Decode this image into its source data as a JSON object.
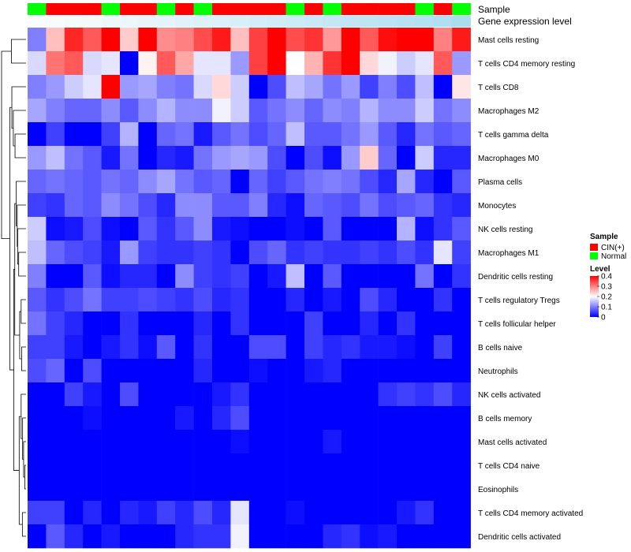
{
  "chart_data": {
    "type": "heatmap",
    "title": "",
    "annotation_tracks": [
      "Sample",
      "Gene expression level"
    ],
    "rows": [
      "Mast cells resting",
      "T cells CD4 memory resting",
      "T cells CD8",
      "Macrophages M2",
      "T cells gamma delta",
      "Macrophages M0",
      "Plasma cells",
      "Monocytes",
      "NK cells resting",
      "Macrophages M1",
      "Dendritic cells resting",
      "T cells regulatory  Tregs",
      "T cells follicular helper",
      "B cells naive",
      "Neutrophils",
      "NK cells activated",
      "B cells memory",
      "Mast cells activated",
      "T cells CD4 naive",
      "Eosinophils",
      "T cells CD4 memory activated",
      "Dendritic cells activated"
    ],
    "sample_groups": [
      "Normal",
      "CIN(+)",
      "CIN(+)",
      "CIN(+)",
      "Normal",
      "CIN(+)",
      "CIN(+)",
      "Normal",
      "CIN(+)",
      "Normal",
      "CIN(+)",
      "CIN(+)",
      "CIN(+)",
      "CIN(+)",
      "Normal",
      "CIN(+)",
      "Normal",
      "CIN(+)",
      "CIN(+)",
      "CIN(+)",
      "CIN(+)",
      "Normal",
      "CIN(+)",
      "Normal"
    ],
    "expression_level_track": [
      0.04,
      0.06,
      0.09,
      0.11,
      0.14,
      0.17,
      0.2,
      0.22,
      0.25,
      0.28,
      0.3,
      0.33,
      0.36,
      0.39,
      0.42,
      0.45,
      0.48,
      0.51,
      0.54,
      0.57,
      0.6,
      0.63,
      0.66,
      0.7
    ],
    "values": [
      [
        0.1,
        0.25,
        0.37,
        0.33,
        0.4,
        0.24,
        0.4,
        0.29,
        0.3,
        0.34,
        0.38,
        0.25,
        0.35,
        0.4,
        0.34,
        0.36,
        0.28,
        0.4,
        0.33,
        0.39,
        0.4,
        0.4,
        0.3,
        0.38
      ],
      [
        0.17,
        0.31,
        0.33,
        0.17,
        0.18,
        0.0,
        0.21,
        0.33,
        0.27,
        0.18,
        0.18,
        0.12,
        0.35,
        0.4,
        0.2,
        0.26,
        0.36,
        0.4,
        0.23,
        0.19,
        0.16,
        0.18,
        0.33,
        0.12
      ],
      [
        0.1,
        0.12,
        0.16,
        0.18,
        0.4,
        0.12,
        0.13,
        0.1,
        0.09,
        0.17,
        0.23,
        0.16,
        0.0,
        0.06,
        0.15,
        0.13,
        0.09,
        0.12,
        0.05,
        0.1,
        0.06,
        0.15,
        0.0,
        0.22
      ],
      [
        0.13,
        0.1,
        0.08,
        0.08,
        0.11,
        0.07,
        0.11,
        0.14,
        0.11,
        0.11,
        0.19,
        0.16,
        0.07,
        0.09,
        0.11,
        0.08,
        0.11,
        0.1,
        0.14,
        0.11,
        0.11,
        0.16,
        0.09,
        0.11
      ],
      [
        0.0,
        0.05,
        0.0,
        0.0,
        0.05,
        0.14,
        0.0,
        0.08,
        0.09,
        0.02,
        0.07,
        0.09,
        0.06,
        0.08,
        0.15,
        0.07,
        0.07,
        0.09,
        0.12,
        0.07,
        0.03,
        0.09,
        0.07,
        0.08
      ],
      [
        0.12,
        0.15,
        0.09,
        0.07,
        0.02,
        0.09,
        0.0,
        0.03,
        0.02,
        0.09,
        0.12,
        0.13,
        0.12,
        0.06,
        0.0,
        0.06,
        0.01,
        0.12,
        0.24,
        0.08,
        0.0,
        0.16,
        0.03,
        0.03
      ],
      [
        0.08,
        0.09,
        0.08,
        0.07,
        0.09,
        0.08,
        0.11,
        0.13,
        0.09,
        0.07,
        0.08,
        0.0,
        0.08,
        0.05,
        0.07,
        0.09,
        0.1,
        0.09,
        0.06,
        0.03,
        0.13,
        0.03,
        0.0,
        0.07
      ],
      [
        0.05,
        0.04,
        0.08,
        0.07,
        0.11,
        0.09,
        0.06,
        0.03,
        0.11,
        0.11,
        0.07,
        0.07,
        0.1,
        0.03,
        0.01,
        0.08,
        0.07,
        0.06,
        0.09,
        0.06,
        0.07,
        0.08,
        0.04,
        0.03
      ],
      [
        0.16,
        0.01,
        0.02,
        0.06,
        0.01,
        0.0,
        0.07,
        0.04,
        0.07,
        0.11,
        0.02,
        0.01,
        0.0,
        0.0,
        0.01,
        0.0,
        0.07,
        0.0,
        0.0,
        0.0,
        0.14,
        0.01,
        0.04,
        0.07
      ],
      [
        0.15,
        0.08,
        0.06,
        0.05,
        0.02,
        0.12,
        0.05,
        0.04,
        0.04,
        0.05,
        0.04,
        0.0,
        0.06,
        0.08,
        0.04,
        0.05,
        0.04,
        0.04,
        0.05,
        0.04,
        0.06,
        0.04,
        0.18,
        0.05
      ],
      [
        0.1,
        0.0,
        0.0,
        0.07,
        0.01,
        0.03,
        0.03,
        0.0,
        0.11,
        0.05,
        0.04,
        0.05,
        0.0,
        0.02,
        0.15,
        0.0,
        0.07,
        0.0,
        0.0,
        0.0,
        0.0,
        0.09,
        0.0,
        0.04
      ],
      [
        0.07,
        0.04,
        0.06,
        0.09,
        0.05,
        0.05,
        0.06,
        0.05,
        0.04,
        0.06,
        0.03,
        0.04,
        0.0,
        0.0,
        0.03,
        0.0,
        0.02,
        0.0,
        0.06,
        0.03,
        0.0,
        0.0,
        0.04,
        0.0
      ],
      [
        0.09,
        0.05,
        0.03,
        0.0,
        0.0,
        0.04,
        0.0,
        0.0,
        0.0,
        0.03,
        0.0,
        0.04,
        0.0,
        0.0,
        0.0,
        0.05,
        0.0,
        0.0,
        0.03,
        0.0,
        0.04,
        0.0,
        0.0,
        0.0
      ],
      [
        0.05,
        0.05,
        0.02,
        0.0,
        0.02,
        0.04,
        0.01,
        0.07,
        0.0,
        0.04,
        0.0,
        0.0,
        0.06,
        0.06,
        0.0,
        0.05,
        0.03,
        0.04,
        0.02,
        0.02,
        0.01,
        0.0,
        0.05,
        0.0
      ],
      [
        0.06,
        0.08,
        0.0,
        0.06,
        0.0,
        0.0,
        0.0,
        0.0,
        0.0,
        0.03,
        0.0,
        0.0,
        0.01,
        0.0,
        0.0,
        0.02,
        0.03,
        0.0,
        0.0,
        0.0,
        0.0,
        0.0,
        0.0,
        0.0
      ],
      [
        0.0,
        0.0,
        0.05,
        0.02,
        0.0,
        0.06,
        0.0,
        0.0,
        0.0,
        0.0,
        0.02,
        0.04,
        0.0,
        0.0,
        0.0,
        0.0,
        0.0,
        0.0,
        0.0,
        0.04,
        0.05,
        0.04,
        0.06,
        0.03
      ],
      [
        0.0,
        0.0,
        0.0,
        0.01,
        0.0,
        0.0,
        0.0,
        0.0,
        0.02,
        0.0,
        0.03,
        0.06,
        0.0,
        0.0,
        0.0,
        0.0,
        0.0,
        0.0,
        0.0,
        0.0,
        0.0,
        0.0,
        0.0,
        0.0
      ],
      [
        0.0,
        0.0,
        0.0,
        0.0,
        0.0,
        0.0,
        0.0,
        0.0,
        0.0,
        0.0,
        0.0,
        0.01,
        0.0,
        0.0,
        0.0,
        0.0,
        0.02,
        0.0,
        0.0,
        0.0,
        0.0,
        0.0,
        0.0,
        0.0
      ],
      [
        0.0,
        0.0,
        0.0,
        0.0,
        0.0,
        0.0,
        0.0,
        0.0,
        0.0,
        0.0,
        0.0,
        0.0,
        0.0,
        0.0,
        0.0,
        0.0,
        0.0,
        0.0,
        0.0,
        0.0,
        0.0,
        0.0,
        0.0,
        0.0
      ],
      [
        0.0,
        0.0,
        0.0,
        0.0,
        0.0,
        0.0,
        0.0,
        0.0,
        0.0,
        0.0,
        0.0,
        0.0,
        0.0,
        0.0,
        0.0,
        0.0,
        0.0,
        0.0,
        0.0,
        0.0,
        0.0,
        0.0,
        0.0,
        0.0
      ],
      [
        0.05,
        0.05,
        0.0,
        0.03,
        0.0,
        0.03,
        0.02,
        0.05,
        0.03,
        0.06,
        0.03,
        0.18,
        0.0,
        0.0,
        0.01,
        0.0,
        0.0,
        0.0,
        0.0,
        0.0,
        0.02,
        0.04,
        0.0,
        0.0
      ],
      [
        0.0,
        0.07,
        0.03,
        0.0,
        0.02,
        0.0,
        0.0,
        0.0,
        0.03,
        0.04,
        0.04,
        0.19,
        0.0,
        0.0,
        0.0,
        0.0,
        0.03,
        0.04,
        0.01,
        0.02,
        0.0,
        0.0,
        0.0,
        0.0
      ]
    ],
    "value_range": [
      0,
      0.4
    ],
    "colorscale": {
      "low": "#0000ff",
      "mid": "#ffffff",
      "high": "#ff0000",
      "mid_value": 0.2
    },
    "legend": {
      "sample_title": "Sample",
      "sample_entries": [
        {
          "label": "CIN(+)",
          "color": "#ff0000"
        },
        {
          "label": "Normal",
          "color": "#00ff00"
        }
      ],
      "level_title": "Level",
      "level_ticks": [
        {
          "label": "0.4",
          "value": 0.4
        },
        {
          "label": "0.3",
          "value": 0.3
        },
        {
          "label": "0.2",
          "value": 0.2
        },
        {
          "label": "0.1",
          "value": 0.1
        },
        {
          "label": "0",
          "value": 0.0
        }
      ]
    }
  }
}
